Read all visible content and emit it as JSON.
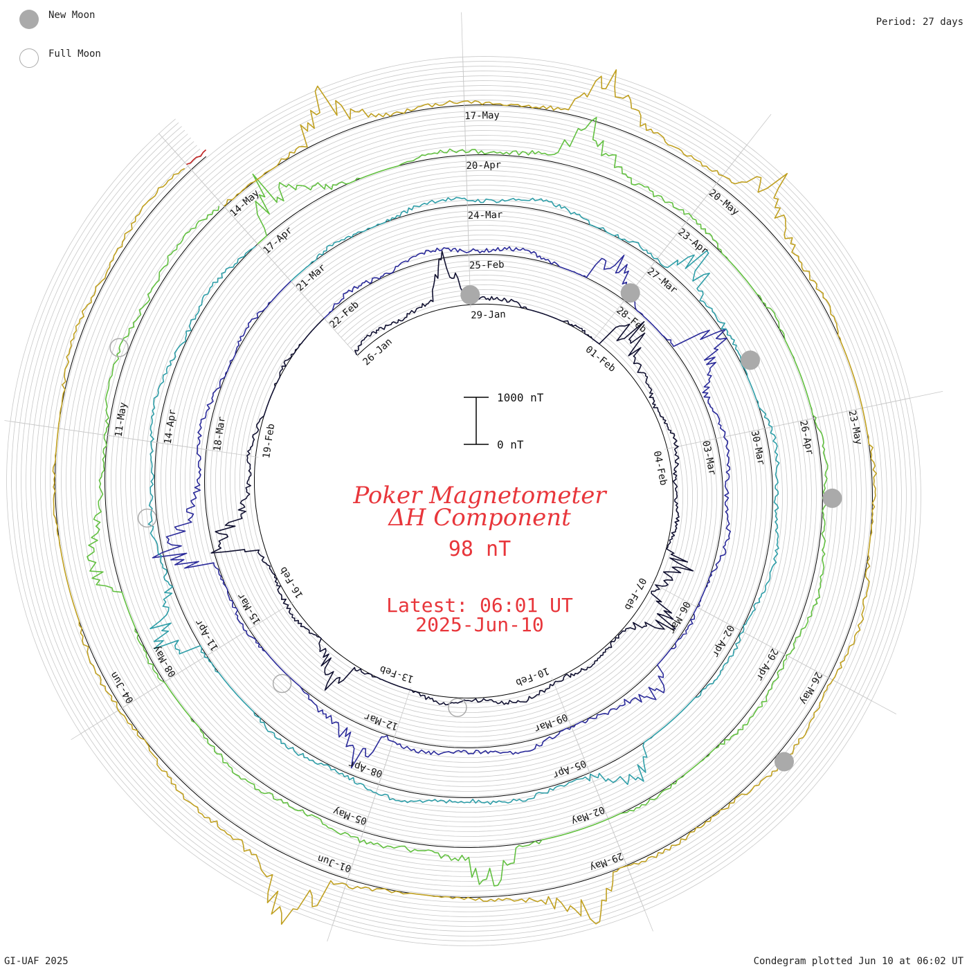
{
  "legend": {
    "new_moon_label": "New Moon",
    "full_moon_label": "Full Moon",
    "new_moon_color": "#aaaaaa",
    "full_moon_color": "#aaaaaa"
  },
  "period_label": "Period: 27 days",
  "footer": {
    "left": "GI-UAF 2025",
    "right": "Condegram plotted Jun 10 at 06:02 UT"
  },
  "center": {
    "title_line1": "Poker Magnetometer",
    "title_line2": "ΔH Component",
    "value": "98 nT",
    "latest_line1": "Latest: 06:01 UT",
    "latest_line2": "2025-Jun-10",
    "scale_top_label": "1000 nT",
    "scale_bottom_label": "0 nT",
    "text_color": "#e8363b"
  },
  "chart_data": {
    "type": "line",
    "title": "Poker Magnetometer ΔH Component",
    "form": "spiral condegram",
    "period_days": 27,
    "start_date": "2025-01-26",
    "end_date": "2025-06-10",
    "latest_value_nT": 98,
    "scale_bar_nT": [
      0,
      1000
    ],
    "revolutions": [
      {
        "index": 0,
        "color": "#101030",
        "start": "2025-01-26"
      },
      {
        "index": 1,
        "color": "#2a2a9a",
        "start": "2025-02-22"
      },
      {
        "index": 2,
        "color": "#2e9ea8",
        "start": "2025-03-21"
      },
      {
        "index": 3,
        "color": "#62c040",
        "start": "2025-04-17"
      },
      {
        "index": 4,
        "color": "#c0a020",
        "start": "2025-05-14"
      }
    ],
    "date_labels": [
      "26-Jan",
      "29-Jan",
      "01-Feb",
      "04-Feb",
      "07-Feb",
      "10-Feb",
      "13-Feb",
      "16-Feb",
      "19-Feb",
      "22-Feb",
      "25-Feb",
      "28-Feb",
      "03-Mar",
      "06-Mar",
      "09-Mar",
      "12-Mar",
      "15-Mar",
      "18-Mar",
      "21-Mar",
      "24-Mar",
      "27-Mar",
      "30-Mar",
      "02-Apr",
      "05-Apr",
      "08-Apr",
      "11-Apr",
      "14-Apr",
      "17-Apr",
      "20-Apr",
      "23-Apr",
      "26-Apr",
      "29-Apr",
      "02-May",
      "05-May",
      "08-May",
      "11-May",
      "14-May",
      "17-May",
      "20-May",
      "23-May",
      "26-May",
      "29-May",
      "01-Jun",
      "04-Jun"
    ],
    "disturbances": [
      {
        "date": "2025-01-28",
        "value_nT": 900
      },
      {
        "date": "2025-02-01",
        "value_nT": 900
      },
      {
        "date": "2025-02-06",
        "value_nT": 600
      },
      {
        "date": "2025-02-07",
        "value_nT": 700
      },
      {
        "date": "2025-02-14",
        "value_nT": 700
      },
      {
        "date": "2025-02-17",
        "value_nT": 900
      },
      {
        "date": "2025-02-27",
        "value_nT": 700
      },
      {
        "date": "2025-03-01",
        "value_nT": 900
      },
      {
        "date": "2025-03-07",
        "value_nT": 500
      },
      {
        "date": "2025-03-12",
        "value_nT": 700
      },
      {
        "date": "2025-03-16",
        "value_nT": 900
      },
      {
        "date": "2025-03-27",
        "value_nT": 700
      },
      {
        "date": "2025-04-04",
        "value_nT": 600
      },
      {
        "date": "2025-04-11",
        "value_nT": 800
      },
      {
        "date": "2025-04-17",
        "value_nT": 900
      },
      {
        "date": "2025-04-21",
        "value_nT": 700
      },
      {
        "date": "2025-05-03",
        "value_nT": 700
      },
      {
        "date": "2025-05-09",
        "value_nT": 600
      },
      {
        "date": "2025-05-15",
        "value_nT": 800
      },
      {
        "date": "2025-05-18",
        "value_nT": 900
      },
      {
        "date": "2025-05-20",
        "value_nT": 700
      },
      {
        "date": "2025-05-29",
        "value_nT": 900
      },
      {
        "date": "2025-06-01",
        "value_nT": 1000
      }
    ],
    "new_moons": [
      "2025-01-29",
      "2025-02-28",
      "2025-03-29",
      "2025-04-27",
      "2025-05-27"
    ],
    "full_moons": [
      "2025-02-12",
      "2025-03-14",
      "2025-04-13",
      "2025-05-12"
    ]
  }
}
